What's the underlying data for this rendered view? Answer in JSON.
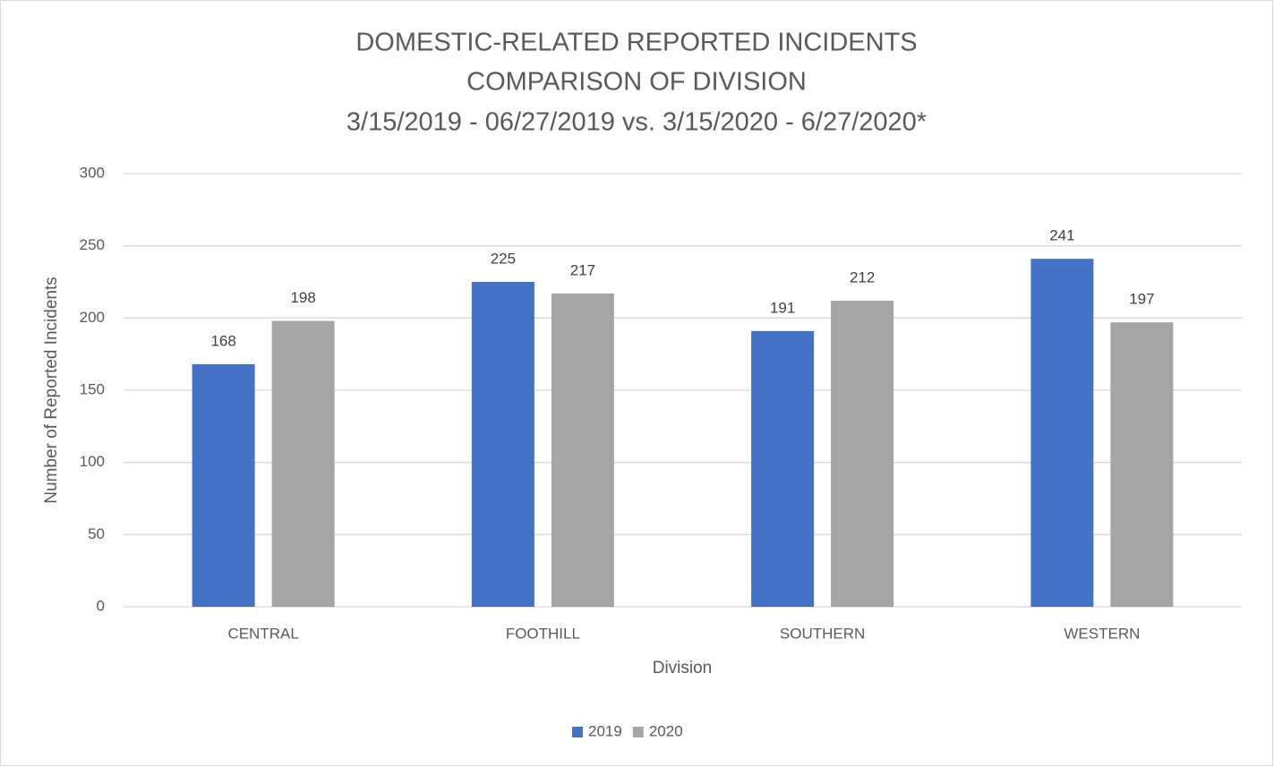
{
  "chart_data": {
    "type": "bar",
    "title": [
      "DOMESTIC-RELATED REPORTED INCIDENTS",
      "COMPARISON OF DIVISION",
      "3/15/2019 - 06/27/2019 vs. 3/15/2020 - 6/27/2020*"
    ],
    "x_label": "Division",
    "y_label": "Number of Reported Incidents",
    "categories": [
      "CENTRAL",
      "FOOTHILL",
      "SOUTHERN",
      "WESTERN"
    ],
    "series": [
      {
        "name": "2019",
        "color": "#4472c4",
        "values": [
          168,
          225,
          191,
          241
        ]
      },
      {
        "name": "2020",
        "color": "#a5a5a5",
        "values": [
          198,
          217,
          212,
          197
        ]
      }
    ],
    "ylim": [
      0,
      300
    ],
    "yticks": [
      0,
      50,
      100,
      150,
      200,
      250,
      300
    ],
    "grid": true,
    "legend": "bottom"
  }
}
